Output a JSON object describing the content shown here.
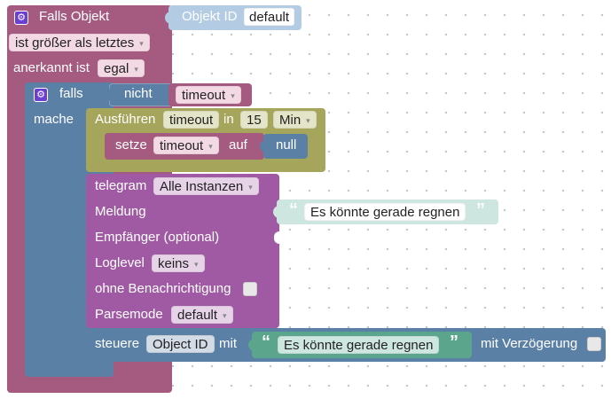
{
  "trigger": {
    "title": "Falls Objekt",
    "object_id_label": "Objekt ID",
    "object_id_value": "default",
    "compare_option": "ist größer als letztes",
    "ack_label": "anerkannt ist",
    "ack_value": "egal"
  },
  "if_block": {
    "label": "falls",
    "do_label": "mache",
    "not_label": "nicht",
    "not_value": "timeout"
  },
  "timeout_block": {
    "label": "Ausführen",
    "name": "timeout",
    "in_label": "in",
    "duration": "15",
    "unit": "Min"
  },
  "set_block": {
    "label": "setze",
    "variable": "timeout",
    "to_label": "auf",
    "value": "null"
  },
  "telegram": {
    "label": "telegram",
    "instance": "Alle Instanzen",
    "message_label": "Meldung",
    "message_text": "Es könnte gerade regnen",
    "recipient_label": "Empfänger (optional)",
    "loglevel_label": "Loglevel",
    "loglevel_value": "keins",
    "silent_label": "ohne Benachrichtigung",
    "parsemode_label": "Parsemode",
    "parsemode_value": "default"
  },
  "control": {
    "label": "steuere",
    "object_id": "Object ID",
    "with_label": "mit",
    "text": "Es könnte gerade regnen",
    "delay_label": "mit Verzögerung"
  },
  "icons": {
    "gear": "gear-icon",
    "open_quote": "“",
    "close_quote": "”",
    "dropdown_arrow": "▾"
  },
  "colors": {
    "trigger": "#a55b80",
    "logic": "#5b80a5",
    "timeout": "#a5a55b",
    "variable": "#a55b80",
    "telegram": "#a05aa3",
    "text": "#5ba58c",
    "text_field": "#cde6df"
  }
}
